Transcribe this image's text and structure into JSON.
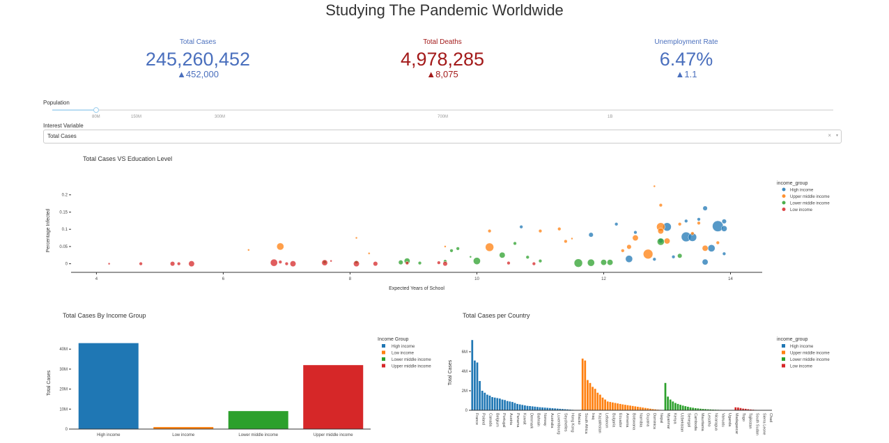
{
  "page_title": "Studying The Pandemic Worldwide",
  "kpis": {
    "total_cases": {
      "label": "Total Cases",
      "value": "245,260,452",
      "delta": "▲452,000",
      "color": "#4a6fbd"
    },
    "total_deaths": {
      "label": "Total Deaths",
      "value": "4,978,285",
      "delta": "▲8,075",
      "color": "#a31a1a"
    },
    "unemployment": {
      "label": "Unemployment Rate",
      "value": "6.47%",
      "delta": "▲1.1",
      "color": "#4a6fbd"
    }
  },
  "population_slider": {
    "label": "Population",
    "value": "80M",
    "marks": [
      "80M",
      "150M",
      "300M",
      "700M",
      "1B"
    ]
  },
  "interest_variable": {
    "label": "Interest Variable",
    "selected": "Total Cases",
    "clear_glyph": "×",
    "arrow_glyph": "▾"
  },
  "colors": {
    "High income": "#1f77b4",
    "Upper middle income": "#ff7f0e",
    "Lower middle income": "#2ca02c",
    "Low income": "#d62728"
  },
  "chart_data": [
    {
      "id": "scatter",
      "type": "scatter",
      "title": "Total Cases VS Education Level",
      "xlabel": "Expected Years of School",
      "ylabel": "Percentage Infected",
      "xlim": [
        3.6,
        14.5
      ],
      "ylim": [
        -0.025,
        0.25
      ],
      "xticks": [
        4,
        6,
        8,
        10,
        12,
        14
      ],
      "yticks": [
        0,
        0.05,
        0.1,
        0.15,
        0.2
      ],
      "ytick_labels": [
        "0",
        "0.05",
        "0.1",
        "0.15",
        "0.2"
      ],
      "legend_title": "income_group",
      "legend": [
        "High income",
        "Upper middle income",
        "Lower middle income",
        "Low income"
      ],
      "series": [
        {
          "name": "High income",
          "points": [
            [
              10.7,
              0.107,
              2
            ],
            [
              11.8,
              0.084,
              3
            ],
            [
              12.2,
              0.115,
              2
            ],
            [
              12.4,
              0.014,
              5
            ],
            [
              12.5,
              0.091,
              2
            ],
            [
              12.9,
              0.067,
              3
            ],
            [
              13.0,
              0.107,
              6
            ],
            [
              13.3,
              0.078,
              7
            ],
            [
              13.4,
              0.077,
              6
            ],
            [
              13.5,
              0.129,
              2
            ],
            [
              13.6,
              0.161,
              3
            ],
            [
              13.6,
              0.005,
              4
            ],
            [
              13.7,
              0.045,
              5
            ],
            [
              13.8,
              0.109,
              8
            ],
            [
              13.9,
              0.123,
              3
            ],
            [
              13.9,
              0.102,
              4
            ],
            [
              13.9,
              0.029,
              2
            ],
            [
              13.3,
              0.124,
              2
            ],
            [
              12.8,
              0.013,
              2
            ],
            [
              13.1,
              0.02,
              2
            ]
          ]
        },
        {
          "name": "Upper middle income",
          "points": [
            [
              6.4,
              0.04,
              1
            ],
            [
              6.9,
              0.05,
              5
            ],
            [
              8.1,
              0.075,
              1
            ],
            [
              8.3,
              0.03,
              1
            ],
            [
              9.5,
              0.05,
              1
            ],
            [
              10.2,
              0.095,
              2
            ],
            [
              10.2,
              0.048,
              6
            ],
            [
              11.0,
              0.095,
              2
            ],
            [
              11.3,
              0.101,
              2
            ],
            [
              11.4,
              0.065,
              2
            ],
            [
              11.5,
              0.073,
              1
            ],
            [
              12.3,
              0.038,
              2
            ],
            [
              12.4,
              0.049,
              3
            ],
            [
              12.5,
              0.075,
              4
            ],
            [
              12.7,
              0.028,
              7
            ],
            [
              12.9,
              0.107,
              6
            ],
            [
              12.9,
              0.095,
              4
            ],
            [
              12.9,
              0.17,
              2
            ],
            [
              13.0,
              0.066,
              4
            ],
            [
              13.2,
              0.115,
              2
            ],
            [
              13.4,
              0.088,
              2
            ],
            [
              13.5,
              0.118,
              2
            ],
            [
              13.8,
              0.061,
              2
            ],
            [
              13.6,
              0.045,
              4
            ],
            [
              12.8,
              0.225,
              1
            ]
          ]
        },
        {
          "name": "Lower middle income",
          "points": [
            [
              8.1,
              0.005,
              2
            ],
            [
              8.8,
              0.004,
              3
            ],
            [
              8.9,
              0.008,
              4
            ],
            [
              9.1,
              0.002,
              2
            ],
            [
              9.5,
              0.007,
              2
            ],
            [
              9.6,
              0.038,
              2
            ],
            [
              9.7,
              0.044,
              2
            ],
            [
              10.0,
              0.008,
              5
            ],
            [
              10.4,
              0.025,
              4
            ],
            [
              10.6,
              0.059,
              2
            ],
            [
              10.8,
              0.019,
              2
            ],
            [
              11.0,
              0.008,
              2
            ],
            [
              11.6,
              0.002,
              6
            ],
            [
              11.8,
              0.003,
              5
            ],
            [
              12.0,
              0.004,
              4
            ],
            [
              12.1,
              0.004,
              4
            ],
            [
              12.9,
              0.064,
              5
            ],
            [
              13.2,
              0.023,
              3
            ],
            [
              9.9,
              0.02,
              1
            ],
            [
              7.6,
              0.005,
              2
            ]
          ]
        },
        {
          "name": "Low income",
          "points": [
            [
              4.2,
              0.0,
              1
            ],
            [
              4.7,
              0.0,
              2
            ],
            [
              5.2,
              0.0,
              3
            ],
            [
              5.3,
              0.0,
              2
            ],
            [
              5.5,
              0.0,
              4
            ],
            [
              6.8,
              0.003,
              5
            ],
            [
              6.9,
              0.005,
              2
            ],
            [
              7.0,
              0.0,
              2
            ],
            [
              7.1,
              0.0,
              4
            ],
            [
              7.6,
              0.003,
              4
            ],
            [
              7.7,
              0.008,
              1
            ],
            [
              8.1,
              0.0,
              4
            ],
            [
              8.4,
              0.0,
              3
            ],
            [
              8.9,
              0.002,
              2
            ],
            [
              9.4,
              0.003,
              2
            ],
            [
              9.5,
              0.0,
              3
            ],
            [
              10.5,
              0.002,
              2
            ],
            [
              10.9,
              0.0,
              2
            ]
          ]
        }
      ]
    },
    {
      "id": "income_bar",
      "type": "bar",
      "title": "Total Cases By Income Group",
      "ylabel": "Total Cases",
      "categories": [
        "High income",
        "Low income",
        "Lower middle income",
        "Upper middle income"
      ],
      "values": [
        43000000,
        1000000,
        9000000,
        32000000
      ],
      "bar_colors": [
        "#1f77b4",
        "#ff7f0e",
        "#2ca02c",
        "#d62728"
      ],
      "ylim": [
        0,
        46000000
      ],
      "yticks": [
        0,
        10000000,
        20000000,
        30000000,
        40000000
      ],
      "ytick_labels": [
        "0",
        "10M",
        "20M",
        "30M",
        "40M"
      ],
      "legend_title": "Income Group",
      "legend": [
        "High income",
        "Low income",
        "Lower middle income",
        "Upper middle income"
      ]
    },
    {
      "id": "country_bar",
      "type": "bar",
      "title": "Total Cases per Country",
      "ylabel": "Total Cases",
      "ylim": [
        0,
        7500000
      ],
      "yticks": [
        0,
        2000000,
        4000000,
        6000000
      ],
      "ytick_labels": [
        "0",
        "2M",
        "4M",
        "6M"
      ],
      "legend_title": "income_group",
      "legend": [
        "High income",
        "Upper middle income",
        "Lower middle income",
        "Low income"
      ],
      "labeled_countries": [
        "France",
        "Poland",
        "Canada",
        "Belgium",
        "Portugal",
        "Austria",
        "Panama",
        "Kuwait",
        "Denmark",
        "Bahrain",
        "Norway",
        "Australia",
        "Luxembourg",
        "Seychelles",
        "Hong Kong",
        "Macao",
        "South Africa",
        "Iraq",
        "Kazakhstan",
        "Lebanon",
        "Bulgaria",
        "Ecuador",
        "Armenia",
        "Botswana",
        "Namibia",
        "Guyana",
        "Dominica",
        "Nepal",
        "Myanmar",
        "Kenya",
        "Uzbekistan",
        "Senegal",
        "Cambodia",
        "Mauritania",
        "Lesotho",
        "Nicaragua",
        "Vanuatu",
        "Uganda",
        "Madagascar",
        "Togo",
        "Tajikistan",
        "South Sudan",
        "Sierra Leone",
        "Chad"
      ],
      "groups": [
        {
          "name": "High income",
          "values": [
            7200000,
            5100000,
            4900000,
            3000000,
            2000000,
            1800000,
            1600000,
            1500000,
            1350000,
            1300000,
            1250000,
            1200000,
            1100000,
            1050000,
            950000,
            900000,
            850000,
            750000,
            650000,
            600000,
            550000,
            500000,
            450000,
            430000,
            400000,
            370000,
            340000,
            310000,
            290000,
            270000,
            250000,
            230000,
            210000,
            190000,
            170000,
            150000,
            130000,
            110000,
            90000,
            70000,
            50000,
            30000,
            20000,
            10000
          ]
        },
        {
          "name": "Upper middle income",
          "values": [
            5300000,
            5100000,
            3100000,
            2800000,
            2400000,
            2200000,
            1800000,
            1600000,
            1300000,
            1100000,
            900000,
            850000,
            800000,
            750000,
            700000,
            650000,
            600000,
            560000,
            520000,
            480000,
            440000,
            400000,
            360000,
            320000,
            280000,
            240000,
            200000,
            160000,
            120000,
            90000,
            60000,
            40000,
            20000
          ]
        },
        {
          "name": "Lower middle income",
          "values": [
            2800000,
            1400000,
            1100000,
            900000,
            750000,
            650000,
            560000,
            480000,
            420000,
            360000,
            300000,
            260000,
            220000,
            190000,
            160000,
            140000,
            120000,
            100000,
            85000,
            70000,
            60000,
            50000,
            40000,
            30000,
            20000,
            15000,
            10000,
            6000
          ]
        },
        {
          "name": "Low income",
          "values": [
            300000,
            280000,
            230000,
            170000,
            150000,
            110000,
            80000,
            60000,
            40000,
            30000,
            20000,
            12000,
            8000,
            5000,
            3000
          ]
        }
      ]
    }
  ]
}
